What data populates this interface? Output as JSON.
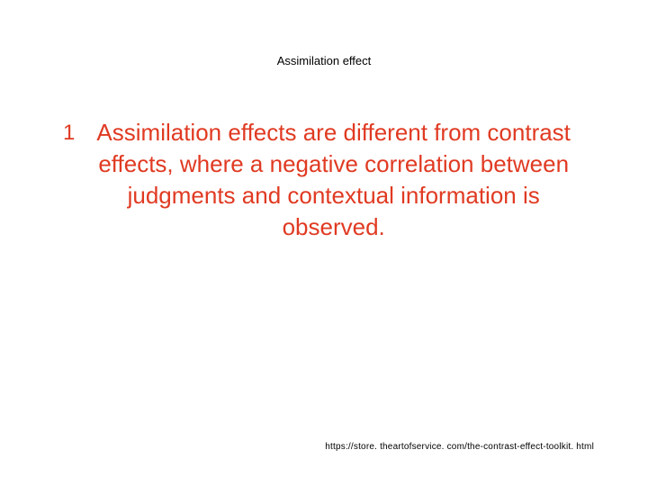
{
  "slide": {
    "title": "Assimilation effect",
    "bullet_marker": "1",
    "body_text": "Assimilation effects are different from contrast effects, where a negative correlation between judgments and contextual information is observed.",
    "footer_url": "https://store. theartofservice. com/the-contrast-effect-toolkit. html"
  },
  "style": {
    "background_color": "#ffffff",
    "title_color": "#000000",
    "title_fontsize": 13,
    "body_color": "#e03a22",
    "body_fontsize": 26,
    "footer_color": "#000000",
    "footer_fontsize": 10,
    "font_family": "Arial"
  }
}
